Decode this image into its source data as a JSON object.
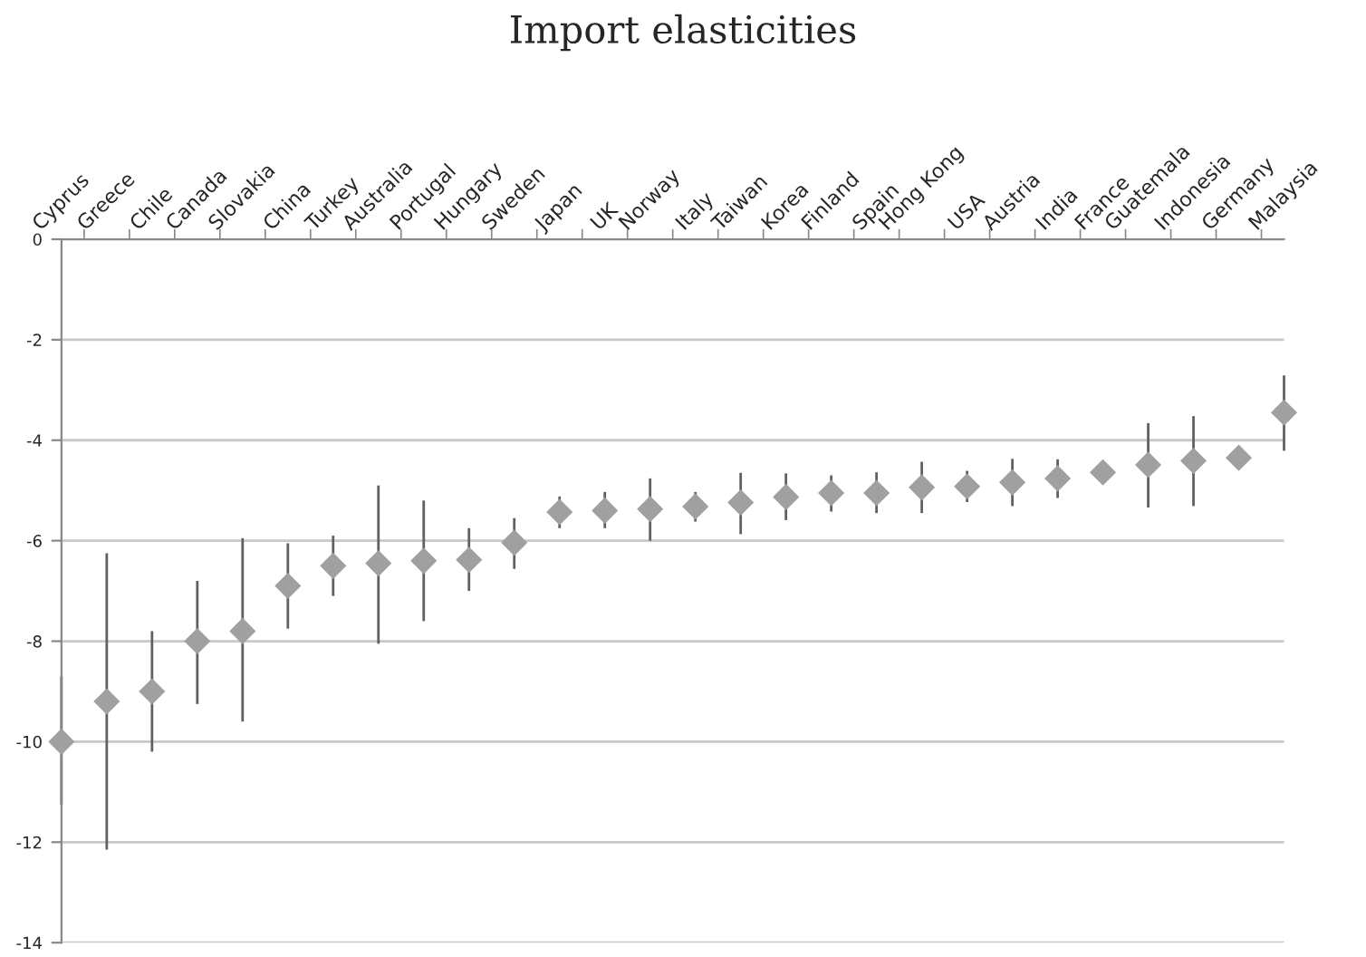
{
  "chart_data": {
    "type": "scatter",
    "title": "Import elasticities",
    "categories": [
      "Cyprus",
      "Greece",
      "Chile",
      "Canada",
      "Slovakia",
      "China",
      "Turkey",
      "Australia",
      "Portugal",
      "Hungary",
      "Sweden",
      "Japan",
      "UK",
      "Norway",
      "Italy",
      "Taiwan",
      "Korea",
      "Finland",
      "Spain",
      "Hong Kong",
      "USA",
      "Austria",
      "India",
      "France",
      "Guatemala",
      "Indonesia",
      "Germany",
      "Malaysia"
    ],
    "values": [
      -10.0,
      -9.2,
      -9.0,
      -8.0,
      -7.8,
      -6.9,
      -6.5,
      -6.45,
      -6.4,
      -6.38,
      -6.04,
      -5.43,
      -5.4,
      -5.37,
      -5.32,
      -5.24,
      -5.13,
      -5.05,
      -5.05,
      -4.94,
      -4.92,
      -4.84,
      -4.76,
      -4.64,
      -4.49,
      -4.41,
      -4.35,
      -3.45
    ],
    "errors": [
      [
        -11.25,
        -8.7
      ],
      [
        -12.15,
        -6.25
      ],
      [
        -10.2,
        -7.8
      ],
      [
        -9.25,
        -6.8
      ],
      [
        -9.6,
        -5.95
      ],
      [
        -7.75,
        -6.05
      ],
      [
        -7.1,
        -5.9
      ],
      [
        -8.05,
        -4.9
      ],
      [
        -7.6,
        -5.2
      ],
      [
        -7.0,
        -5.75
      ],
      [
        -6.56,
        -5.55
      ],
      [
        -5.75,
        -5.12
      ],
      [
        -5.75,
        -5.03
      ],
      [
        -6.0,
        -4.76
      ],
      [
        -5.62,
        -5.03
      ],
      [
        -5.87,
        -4.65
      ],
      [
        -5.59,
        -4.66
      ],
      [
        -5.42,
        -4.7
      ],
      [
        -5.45,
        -4.64
      ],
      [
        -5.45,
        -4.43
      ],
      [
        -5.23,
        -4.61
      ],
      [
        -5.31,
        -4.37
      ],
      [
        -5.15,
        -4.38
      ],
      [
        -4.86,
        -4.43
      ],
      [
        -5.34,
        -3.66
      ],
      [
        -5.31,
        -3.52
      ],
      null,
      [
        -4.21,
        -2.71
      ]
    ],
    "color": "#a0a0a0",
    "marker": "diamond",
    "ylim": [
      -14,
      0
    ],
    "yticks": [
      0,
      -2,
      -4,
      -6,
      -8,
      -10,
      -12,
      -14
    ],
    "grid": "y"
  }
}
